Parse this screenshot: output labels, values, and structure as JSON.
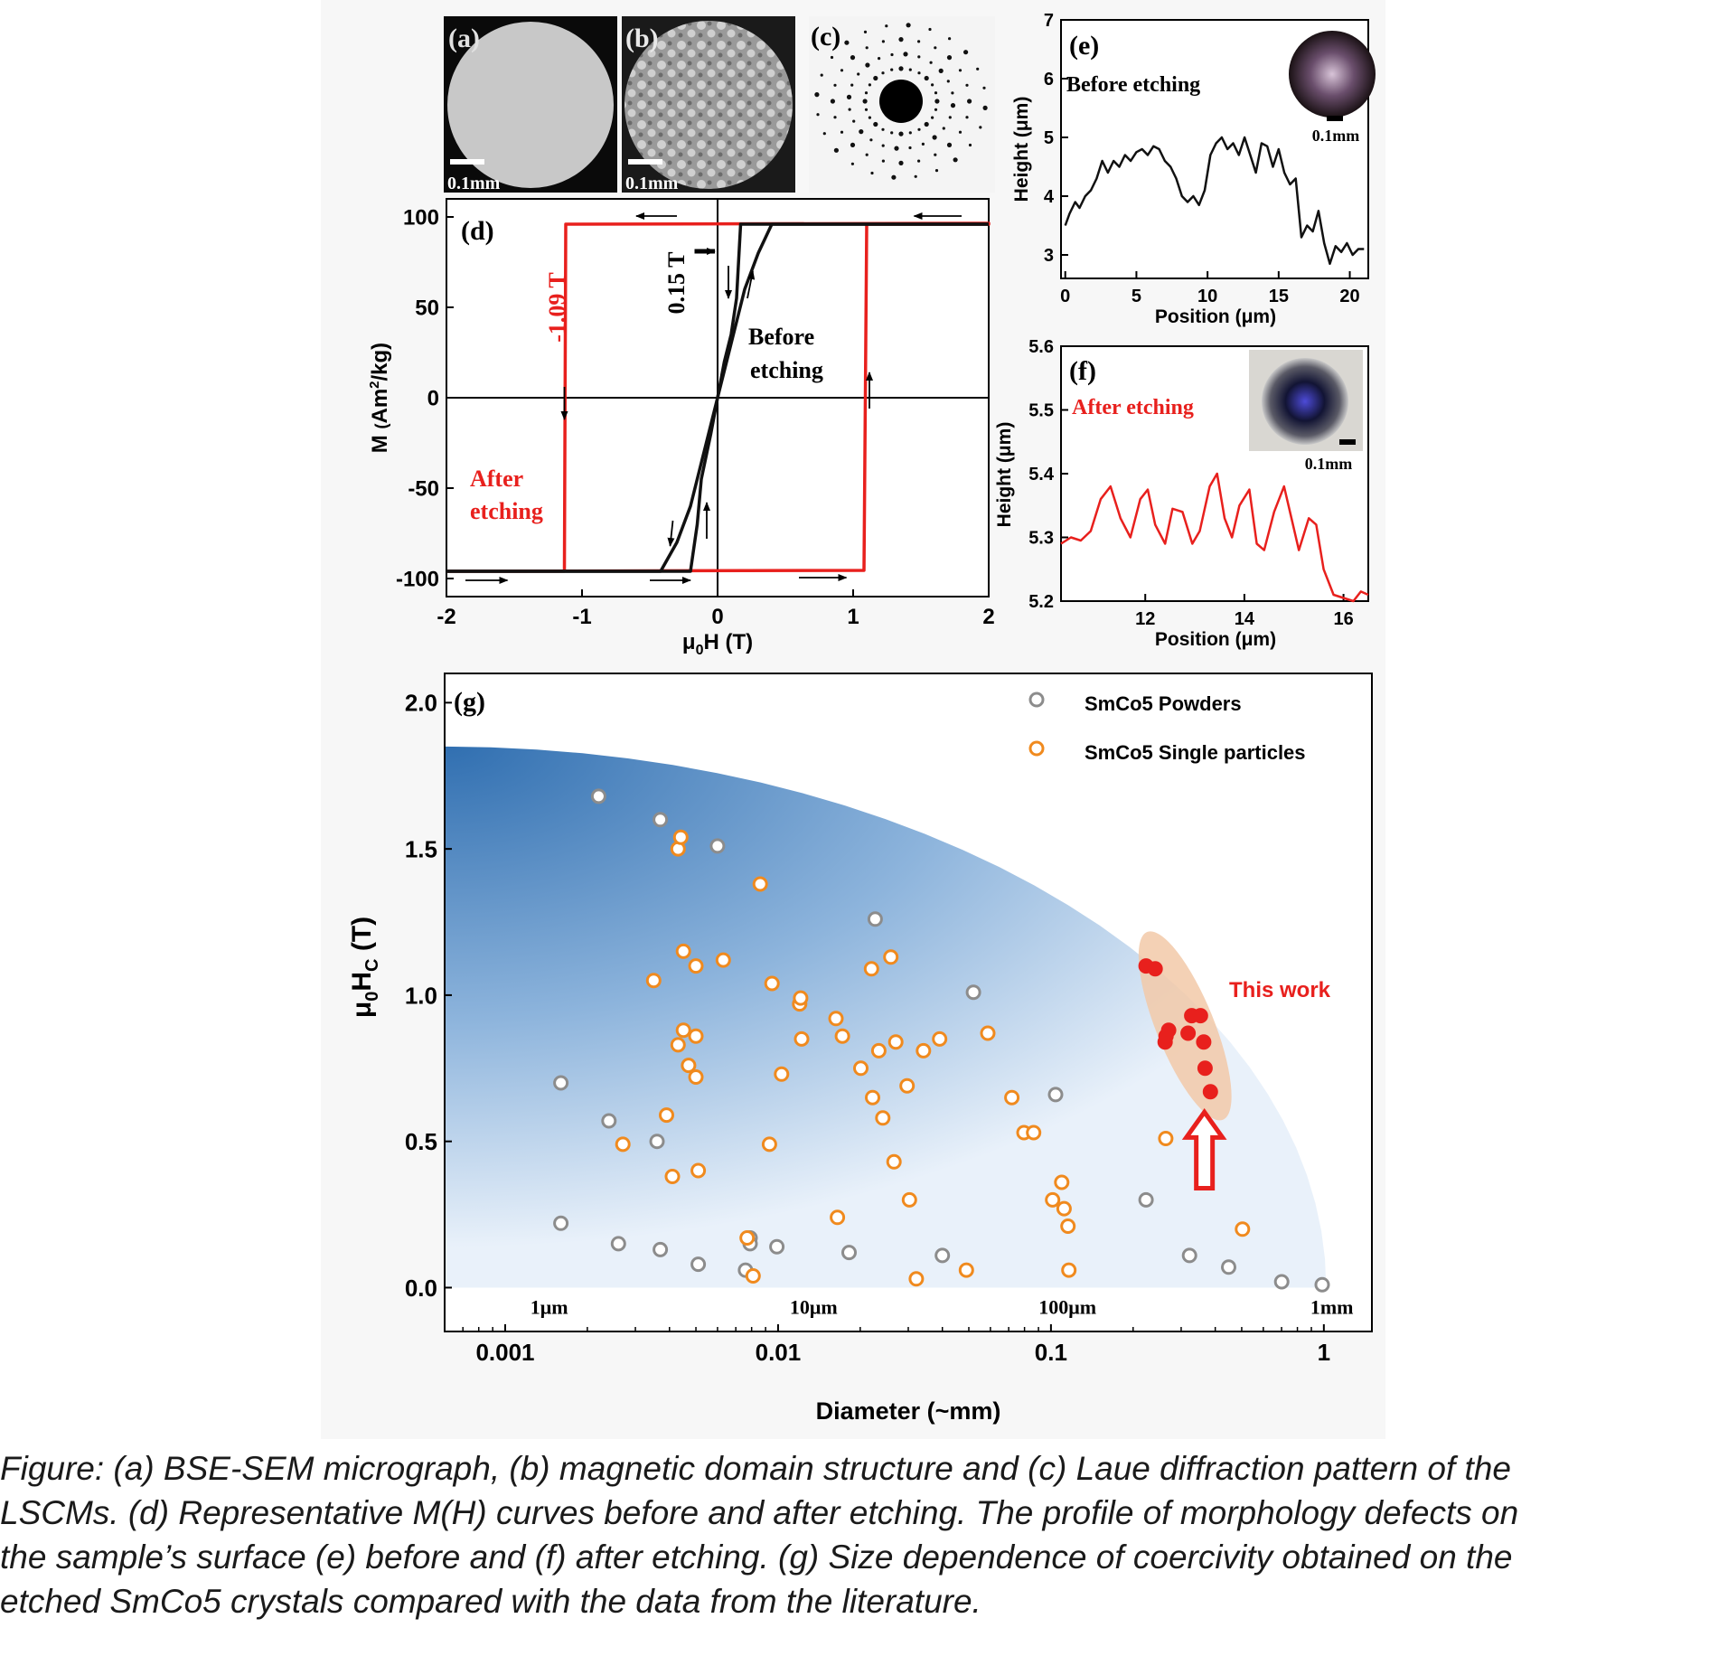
{
  "panels_ab": {
    "a": {
      "label": "(a)",
      "scale": "0.1mm"
    },
    "b": {
      "label": "(b)",
      "scale": "0.1mm"
    },
    "c": {
      "label": "(c)"
    }
  },
  "chart_data": [
    {
      "id": "d",
      "type": "line",
      "panel_label": "(d)",
      "xlabel": "μ0H (T)",
      "ylabel": "M (Am2/kg)",
      "xlim": [
        -2,
        2
      ],
      "ylim": [
        -110,
        110
      ],
      "x_ticks": [
        -2,
        -1,
        0,
        1,
        2
      ],
      "y_ticks": [
        -100,
        -50,
        0,
        50,
        100
      ],
      "annotations": {
        "red_field": "-1.09 T",
        "black_field": "0.15 T",
        "before": [
          "Before",
          "etching"
        ],
        "after": [
          "After",
          "etching"
        ]
      },
      "series": [
        {
          "name": "After etching",
          "color": "#e8201d",
          "x": [
            -2,
            -1.13,
            -1.13,
            -1.12,
            1.09,
            1.1,
            1.1,
            2
          ],
          "y": [
            -96,
            -96,
            20,
            96,
            96,
            20,
            -95,
            -95
          ],
          "closed": true,
          "points": [
            [
              -2,
              -96
            ],
            [
              1.08,
              -95.5
            ],
            [
              1.1,
              96
            ],
            [
              2,
              96
            ],
            [
              -1.12,
              96
            ],
            [
              -1.13,
              -96
            ]
          ]
        },
        {
          "name": "Before etching",
          "color": "#111111",
          "points": [
            [
              -2,
              -96
            ],
            [
              -0.4,
              -96
            ],
            [
              -0.25,
              -70
            ],
            [
              -0.1,
              -30
            ],
            [
              0,
              0
            ],
            [
              0.1,
              30
            ],
            [
              0.2,
              70
            ],
            [
              0.4,
              96
            ],
            [
              2,
              96
            ]
          ]
        }
      ]
    },
    {
      "id": "e",
      "type": "line",
      "panel_label": "(e)",
      "label": "Before etching",
      "scale": "0.1mm",
      "xlabel": "Position (μm)",
      "ylabel": "Height (μm)",
      "xlim": [
        0,
        21
      ],
      "ylim": [
        2.6,
        7
      ],
      "x_ticks": [
        0,
        5,
        10,
        15,
        20
      ],
      "y_ticks": [
        3,
        4,
        5,
        6,
        7
      ],
      "color": "#111111",
      "x": [
        0,
        0.3,
        0.7,
        1.0,
        1.4,
        1.8,
        2.2,
        2.6,
        3.0,
        3.4,
        3.8,
        4.2,
        4.6,
        5.0,
        5.4,
        5.8,
        6.2,
        6.6,
        7.0,
        7.4,
        7.8,
        8.2,
        8.6,
        9.0,
        9.4,
        9.8,
        10.2,
        10.6,
        11.0,
        11.4,
        11.8,
        12.2,
        12.6,
        13.0,
        13.4,
        13.8,
        14.2,
        14.6,
        15.0,
        15.4,
        15.8,
        16.2,
        16.6,
        17.0,
        17.4,
        17.8,
        18.2,
        18.6,
        19.0,
        19.4,
        19.8,
        20.2,
        20.6,
        21.0
      ],
      "y": [
        3.5,
        3.7,
        3.9,
        3.8,
        4.0,
        4.1,
        4.3,
        4.6,
        4.4,
        4.6,
        4.5,
        4.7,
        4.6,
        4.75,
        4.8,
        4.7,
        4.85,
        4.8,
        4.6,
        4.5,
        4.3,
        4.0,
        3.9,
        4.0,
        3.85,
        4.1,
        4.7,
        4.9,
        5.0,
        4.8,
        4.9,
        4.7,
        5.0,
        4.7,
        4.4,
        4.9,
        4.85,
        4.5,
        4.8,
        4.4,
        4.2,
        4.3,
        3.3,
        3.5,
        3.4,
        3.75,
        3.2,
        2.85,
        3.15,
        3.05,
        3.2,
        3.0,
        3.1,
        3.1
      ]
    },
    {
      "id": "f",
      "type": "line",
      "panel_label": "(f)",
      "label": "After etching",
      "scale": "0.1mm",
      "xlabel": "Position (μm)",
      "ylabel": "Height (μm)",
      "xlim": [
        10.3,
        16.5
      ],
      "ylim": [
        5.2,
        5.6
      ],
      "x_ticks": [
        12,
        14,
        16
      ],
      "y_ticks": [
        5.2,
        5.3,
        5.4,
        5.5,
        5.6
      ],
      "color": "#e8201d",
      "x": [
        10.3,
        10.5,
        10.7,
        10.9,
        11.1,
        11.3,
        11.5,
        11.7,
        11.9,
        12.05,
        12.2,
        12.4,
        12.55,
        12.75,
        12.95,
        13.1,
        13.3,
        13.45,
        13.6,
        13.75,
        13.9,
        14.1,
        14.25,
        14.4,
        14.6,
        14.8,
        14.95,
        15.1,
        15.3,
        15.45,
        15.6,
        15.8,
        16.0,
        16.2,
        16.35,
        16.5
      ],
      "y": [
        5.29,
        5.3,
        5.295,
        5.31,
        5.36,
        5.38,
        5.33,
        5.3,
        5.36,
        5.375,
        5.32,
        5.29,
        5.345,
        5.34,
        5.29,
        5.31,
        5.38,
        5.4,
        5.33,
        5.3,
        5.35,
        5.375,
        5.29,
        5.28,
        5.34,
        5.38,
        5.33,
        5.28,
        5.33,
        5.32,
        5.25,
        5.21,
        5.205,
        5.2,
        5.215,
        5.21
      ]
    },
    {
      "id": "g",
      "type": "scatter",
      "panel_label": "(g)",
      "xlabel": "Diameter (~mm)",
      "ylabel": "μ0HC (T)",
      "x_scale": "log",
      "xlim": [
        0.0006,
        1.5
      ],
      "ylim": [
        -0.15,
        2.1
      ],
      "x_ticks": [
        0.001,
        0.01,
        0.1,
        1
      ],
      "x_tick_labels": [
        "0.001",
        "0.01",
        "0.1",
        "1"
      ],
      "y_ticks": [
        0.0,
        0.5,
        1.0,
        1.5,
        2.0
      ],
      "y_tick_labels": [
        "0.0",
        "0.5",
        "1.0",
        "1.5",
        "2.0"
      ],
      "size_labels": [
        "1μm",
        "10μm",
        "100μm",
        "1mm"
      ],
      "annotation": "This work",
      "legend_position": "top-right",
      "series": [
        {
          "name": "SmCo5 Powders",
          "marker": "open-circle",
          "color": "#8c8c8c",
          "x": [
            0.0016,
            0.0016,
            0.0022,
            0.0024,
            0.0026,
            0.0036,
            0.0037,
            0.0037,
            0.0051,
            0.006,
            0.0076,
            0.0079,
            0.0079,
            0.0099,
            0.0182,
            0.0227,
            0.04,
            0.052,
            0.104,
            0.223,
            0.322,
            0.448,
            0.701,
            0.986
          ],
          "y": [
            0.7,
            0.22,
            1.68,
            0.57,
            0.15,
            0.5,
            0.13,
            1.6,
            0.08,
            1.51,
            0.06,
            0.17,
            0.15,
            0.14,
            0.12,
            1.26,
            0.11,
            1.01,
            0.66,
            0.3,
            0.11,
            0.07,
            0.02,
            0.01
          ]
        },
        {
          "name": "SmCo5 Single particles",
          "marker": "open-circle",
          "color": "#f08a1e",
          "x": [
            0.0027,
            0.0035,
            0.0039,
            0.0041,
            0.0043,
            0.0043,
            0.0044,
            0.0045,
            0.0045,
            0.0047,
            0.005,
            0.005,
            0.005,
            0.0051,
            0.0063,
            0.0077,
            0.0081,
            0.0086,
            0.0093,
            0.0095,
            0.0103,
            0.012,
            0.0121,
            0.0122,
            0.0163,
            0.0165,
            0.0172,
            0.0201,
            0.022,
            0.0222,
            0.0234,
            0.0242,
            0.0259,
            0.0266,
            0.027,
            0.0297,
            0.0303,
            0.0321,
            0.0341,
            0.0391,
            0.049,
            0.0587,
            0.0719,
            0.0796,
            0.0864,
            0.1014,
            0.1095,
            0.1117,
            0.1154,
            0.1163,
            0.2634,
            0.5033
          ],
          "y": [
            0.49,
            1.05,
            0.59,
            0.38,
            0.83,
            1.5,
            1.54,
            0.88,
            1.15,
            0.76,
            0.86,
            0.72,
            1.1,
            0.4,
            1.12,
            0.17,
            0.04,
            1.38,
            0.49,
            1.04,
            0.73,
            0.97,
            0.99,
            0.85,
            0.92,
            0.24,
            0.86,
            0.75,
            1.09,
            0.65,
            0.81,
            0.58,
            1.13,
            0.43,
            0.84,
            0.69,
            0.3,
            0.03,
            0.81,
            0.85,
            0.06,
            0.87,
            0.65,
            0.53,
            0.53,
            0.3,
            0.36,
            0.27,
            0.21,
            0.06,
            0.51,
            0.2
          ]
        },
        {
          "name": "This work",
          "marker": "filled-circle",
          "color": "#e8201d",
          "x": [
            0.223,
            0.241,
            0.262,
            0.264,
            0.27,
            0.318,
            0.328,
            0.353,
            0.363,
            0.367,
            0.384
          ],
          "y": [
            1.1,
            1.09,
            0.84,
            0.86,
            0.88,
            0.87,
            0.93,
            0.93,
            0.84,
            0.75,
            0.67
          ]
        }
      ]
    }
  ],
  "caption": [
    "Figure: (a) BSE-SEM micrograph, (b) magnetic domain structure and (c) Laue diffraction pattern of the",
    "LSCMs. (d) Representative M(H) curves before and after etching. The profile of morphology defects on",
    "the sample’s surface (e) before and (f) after etching. (g) Size dependence of coercivity obtained on the",
    "etched SmCo5 crystals compared with the data from the literature."
  ],
  "colors": {
    "red": "#e8201d",
    "orange": "#f08a1e",
    "gray": "#8c8c8c",
    "blue": "#2f6eb0",
    "text": "#000000"
  }
}
